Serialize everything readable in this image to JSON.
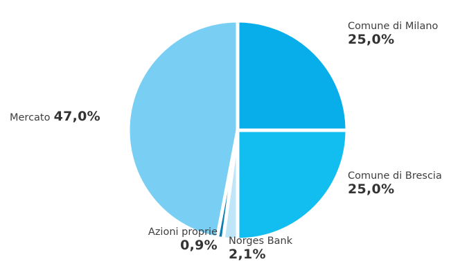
{
  "chart_data": {
    "type": "pie",
    "slices": [
      {
        "label": "Comune di Milano",
        "value": 25.0,
        "display": "25,0%",
        "color": "#08aeea"
      },
      {
        "label": "Comune di Brescia",
        "value": 25.0,
        "display": "25,0%",
        "color": "#12bdf0"
      },
      {
        "label": "Norges Bank",
        "value": 2.1,
        "display": "2,1%",
        "color": "#bfe6f8"
      },
      {
        "label": "Azioni proprie",
        "value": 0.9,
        "display": "0,9%",
        "color": "#0b7db5"
      },
      {
        "label": "Mercato",
        "value": 47.0,
        "display": "47,0%",
        "color": "#79cff3"
      }
    ],
    "start_angle_deg": 0,
    "direction": "clockwise",
    "separator_color": "#ffffff"
  }
}
